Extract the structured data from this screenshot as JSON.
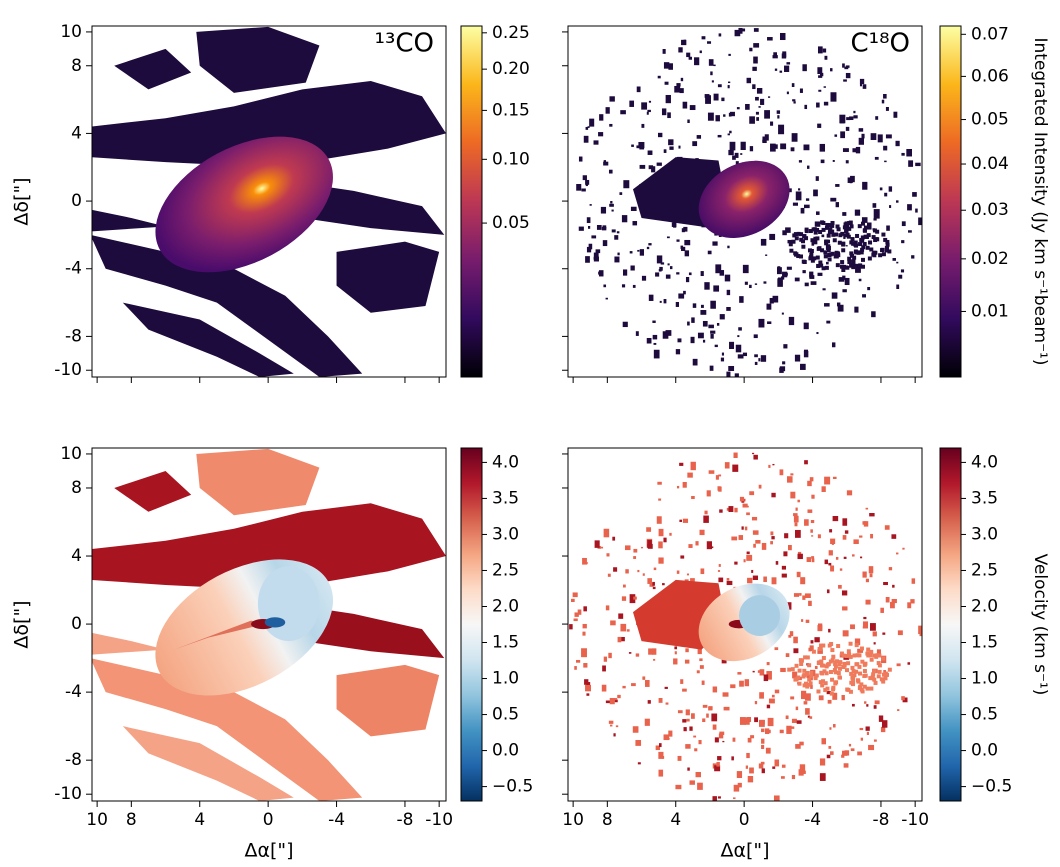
{
  "chart_data": [
    {
      "type": "image",
      "title": "¹³CO",
      "ylabel": "Δδ[\"]",
      "xlim": [
        10.3,
        -10.4
      ],
      "ylim": [
        -10.4,
        10.35
      ],
      "xticks": [
        10,
        8,
        4,
        0,
        -4,
        -8,
        -10
      ],
      "yticks": [
        10,
        8,
        4,
        0,
        -4,
        -8,
        -10
      ],
      "xtick_labels": false,
      "ytick_labels": true,
      "colorbar": {
        "lim": [
          0,
          0.26
        ],
        "scale": "power",
        "exponent": 0.5,
        "ticks": [
          {
            "value": 0.05,
            "label": "0.05"
          },
          {
            "value": 0.1,
            "label": "0.10"
          },
          {
            "value": 0.15,
            "label": "0.15"
          },
          {
            "value": 0.2,
            "label": "0.20"
          },
          {
            "value": 0.25,
            "label": "0.25"
          }
        ],
        "colors": [
          "#000004",
          "#320a5e",
          "#781c6d",
          "#bc3754",
          "#ed6925",
          "#fbb61a",
          "#fcffa4"
        ]
      }
    },
    {
      "type": "image",
      "title": "C¹⁸O",
      "xlim": [
        10.3,
        -10.4
      ],
      "ylim": [
        -10.4,
        10.35
      ],
      "xticks": [
        10,
        8,
        4,
        0,
        -4,
        -8,
        -10
      ],
      "yticks": [
        10,
        8,
        4,
        0,
        -4,
        -8,
        -10
      ],
      "xtick_labels": false,
      "ytick_labels": false,
      "colorbar": {
        "lim": [
          0,
          0.072
        ],
        "scale": "power",
        "exponent": 0.85,
        "ticks": [
          0.01,
          0.02,
          0.03,
          0.04,
          0.05,
          0.06,
          0.07
        ],
        "label": "Integrated Intensity (Jy km s⁻¹beam⁻¹)",
        "colors": [
          "#000004",
          "#320a5e",
          "#781c6d",
          "#bc3754",
          "#ed6925",
          "#fbb61a",
          "#fcffa4"
        ]
      }
    },
    {
      "type": "image",
      "xlabel": "Δα[\"]",
      "ylabel": "Δδ[\"]",
      "xlim": [
        10.3,
        -10.4
      ],
      "ylim": [
        -10.4,
        10.35
      ],
      "xticks": [
        10,
        8,
        4,
        0,
        -4,
        -8,
        -10
      ],
      "yticks": [
        10,
        8,
        4,
        0,
        -4,
        -8,
        -10
      ],
      "xtick_labels": true,
      "ytick_labels": true,
      "colorbar": {
        "lim": [
          -0.7,
          4.2
        ],
        "scale": "linear",
        "ticks": [
          {
            "value": -0.5,
            "label": "−0.5"
          },
          {
            "value": 0,
            "label": "0.0"
          },
          0.5,
          {
            "value": 1,
            "label": "1.0"
          },
          1.5,
          {
            "value": 2,
            "label": "2.0"
          },
          2.5,
          {
            "value": 3,
            "label": "3.0"
          },
          3.5,
          {
            "value": 4,
            "label": "4.0"
          }
        ],
        "colors": [
          "#053061",
          "#2166ac",
          "#4393c3",
          "#92c5de",
          "#d1e5f0",
          "#f7f7f7",
          "#fddbc7",
          "#f4a582",
          "#d6604d",
          "#b2182b",
          "#67001f"
        ]
      }
    },
    {
      "type": "image",
      "xlabel": "Δα[\"]",
      "xlim": [
        10.3,
        -10.4
      ],
      "ylim": [
        -10.4,
        10.35
      ],
      "xticks": [
        10,
        8,
        4,
        0,
        -4,
        -8,
        -10
      ],
      "yticks": [
        10,
        8,
        4,
        0,
        -4,
        -8,
        -10
      ],
      "xtick_labels": true,
      "ytick_labels": false,
      "colorbar": {
        "lim": [
          -0.7,
          4.2
        ],
        "scale": "linear",
        "ticks": [
          {
            "value": -0.5,
            "label": "−0.5"
          },
          {
            "value": 0,
            "label": "0.0"
          },
          0.5,
          {
            "value": 1,
            "label": "1.0"
          },
          1.5,
          {
            "value": 2,
            "label": "2.0"
          },
          2.5,
          {
            "value": 3,
            "label": "3.0"
          },
          3.5,
          {
            "value": 4,
            "label": "4.0"
          }
        ],
        "label": "Velocity (km s⁻¹)",
        "colors": [
          "#053061",
          "#2166ac",
          "#4393c3",
          "#92c5de",
          "#d1e5f0",
          "#f7f7f7",
          "#fddbc7",
          "#f4a582",
          "#d6604d",
          "#b2182b",
          "#67001f"
        ]
      }
    }
  ]
}
